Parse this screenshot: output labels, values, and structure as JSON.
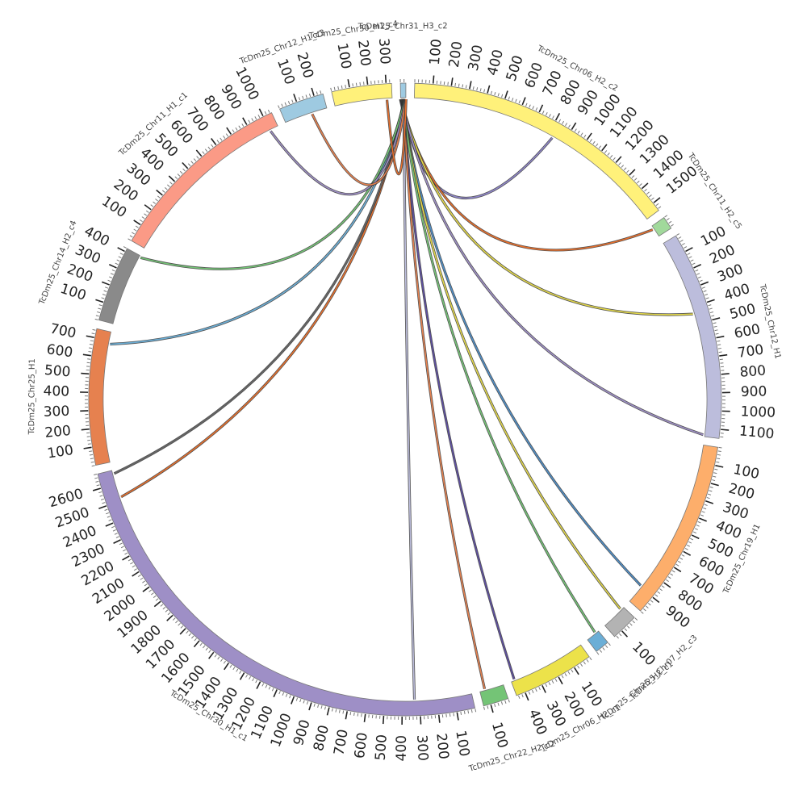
{
  "chromosomes": [
    {
      "name": "TcDm25_Chr31_H3_c2",
      "length": 30,
      "color": "#9ecae1",
      "ticks": []
    },
    {
      "name": "TcDm25_Chr06_H2_c2",
      "length": 1550,
      "color": "#fff17a",
      "ticks": [
        "100",
        "200",
        "300",
        "400",
        "500",
        "600",
        "700",
        "800",
        "900",
        "1000",
        "1100",
        "1200",
        "1300",
        "1400",
        "1500"
      ]
    },
    {
      "name": "TcDm25_Chr11_H2_c5",
      "length": 70,
      "color": "#a1d99b",
      "ticks": []
    },
    {
      "name": "TcDm25_Chr12_H1",
      "length": 1150,
      "color": "#bcbddc",
      "ticks": [
        "100",
        "200",
        "300",
        "400",
        "500",
        "600",
        "700",
        "800",
        "900",
        "1000",
        "1100"
      ]
    },
    {
      "name": "TcDm25_Chr19_H1",
      "length": 1000,
      "color": "#fdae6b",
      "ticks": [
        "100",
        "200",
        "300",
        "400",
        "500",
        "600",
        "700",
        "800",
        "900"
      ]
    },
    {
      "name": "TcDm25_Chr07_H2_c3",
      "length": 150,
      "color": "#b3b3b3",
      "ticks": [
        "100"
      ]
    },
    {
      "name": "TcDm25_Chr25_H2_c1",
      "length": 80,
      "color": "#6baed6",
      "ticks": []
    },
    {
      "name": "TcDm25_Chr06_H2_c1",
      "length": 450,
      "color": "#ece24a",
      "ticks": [
        "100",
        "200",
        "300",
        "400"
      ]
    },
    {
      "name": "TcDm25_Chr22_H2_c2",
      "length": 140,
      "color": "#74c476",
      "ticks": [
        "100"
      ]
    },
    {
      "name": "TcDm25_Chr30_H1_c1",
      "length": 2680,
      "color": "#9e8fc6",
      "ticks": [
        "100",
        "200",
        "300",
        "400",
        "500",
        "600",
        "700",
        "800",
        "900",
        "1000",
        "1100",
        "1200",
        "1300",
        "1400",
        "1500",
        "1600",
        "1700",
        "1800",
        "1900",
        "2000",
        "2100",
        "2200",
        "2300",
        "2400",
        "2500",
        "2600"
      ]
    },
    {
      "name": "TcDm25_Chr25_H1",
      "length": 750,
      "color": "#e6814f",
      "ticks": [
        "100",
        "200",
        "300",
        "400",
        "500",
        "600",
        "700"
      ]
    },
    {
      "name": "TcDm25_Chr14_H2_c4",
      "length": 420,
      "color": "#8a8a8a",
      "ticks": [
        "100",
        "200",
        "300",
        "400"
      ]
    },
    {
      "name": "TcDm25_Chr11_H1_c1",
      "length": 1050,
      "color": "#fb9a86",
      "ticks": [
        "100",
        "200",
        "300",
        "400",
        "500",
        "600",
        "700",
        "800",
        "900",
        "1000"
      ]
    },
    {
      "name": "TcDm25_Chr12_H1_c3",
      "length": 250,
      "color": "#9ecae1",
      "ticks": [
        "100",
        "200"
      ]
    },
    {
      "name": "TcDm25_Chr30_H1_c4",
      "length": 330,
      "color": "#fff17a",
      "ticks": [
        "100",
        "200",
        "300"
      ]
    }
  ],
  "links": [
    {
      "from": "TcDm25_Chr31_H3_c2",
      "to": "TcDm25_Chr06_H2_c2",
      "pos": 830,
      "color": "#8f86c9"
    },
    {
      "from": "TcDm25_Chr31_H3_c2",
      "to": "TcDm25_Chr11_H2_c5",
      "pos": 20,
      "color": "#e76f2c"
    },
    {
      "from": "TcDm25_Chr31_H3_c2",
      "to": "TcDm25_Chr12_H1",
      "pos": 440,
      "color": "#e3d84a"
    },
    {
      "from": "TcDm25_Chr31_H3_c2",
      "to": "TcDm25_Chr12_H1",
      "pos": 1140,
      "color": "#9e8fc6"
    },
    {
      "from": "TcDm25_Chr31_H3_c2",
      "to": "TcDm25_Chr19_H1",
      "pos": 890,
      "color": "#4f8fc8"
    },
    {
      "from": "TcDm25_Chr31_H3_c2",
      "to": "TcDm25_Chr07_H2_c3",
      "pos": 20,
      "color": "#e3d84a"
    },
    {
      "from": "TcDm25_Chr31_H3_c2",
      "to": "TcDm25_Chr25_H2_c1",
      "pos": 20,
      "color": "#74c476"
    },
    {
      "from": "TcDm25_Chr31_H3_c2",
      "to": "TcDm25_Chr06_H2_c1",
      "pos": 430,
      "color": "#5e4fa2"
    },
    {
      "from": "TcDm25_Chr31_H3_c2",
      "to": "TcDm25_Chr22_H2_c2",
      "pos": 110,
      "color": "#e6814f"
    },
    {
      "from": "TcDm25_Chr31_H3_c2",
      "to": "TcDm25_Chr30_H1_c1",
      "pos": 330,
      "color": "#bcbddc"
    },
    {
      "from": "TcDm25_Chr31_H3_c2",
      "to": "TcDm25_Chr30_H1_c1",
      "pos": 2520,
      "color": "#e76f2c"
    },
    {
      "from": "TcDm25_Chr31_H3_c2",
      "to": "TcDm25_Chr30_H1_c1",
      "pos": 2660,
      "color": "#666666"
    },
    {
      "from": "TcDm25_Chr31_H3_c2",
      "to": "TcDm25_Chr25_H1",
      "pos": 680,
      "color": "#6baed6"
    },
    {
      "from": "TcDm25_Chr31_H3_c2",
      "to": "TcDm25_Chr14_H2_c4",
      "pos": 410,
      "color": "#74c476"
    },
    {
      "from": "TcDm25_Chr31_H3_c2",
      "to": "TcDm25_Chr11_H1_c1",
      "pos": 1000,
      "color": "#9e8fc6"
    },
    {
      "from": "TcDm25_Chr31_H3_c2",
      "to": "TcDm25_Chr12_H1_c3",
      "pos": 160,
      "color": "#e6814f"
    },
    {
      "from": "TcDm25_Chr31_H3_c2",
      "to": "TcDm25_Chr30_H1_c4",
      "pos": 300,
      "color": "#e76f2c"
    }
  ]
}
